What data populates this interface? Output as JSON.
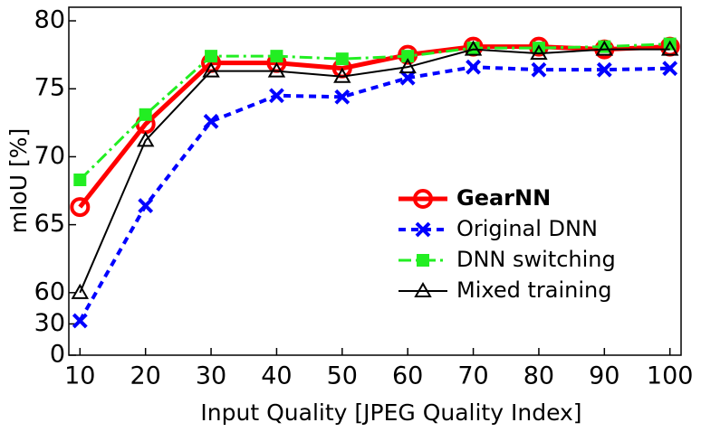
{
  "chart_data": {
    "type": "line",
    "xlabel": "Input Quality [JPEG Quality Index]",
    "ylabel": "mIoU [%]",
    "x": [
      10,
      20,
      30,
      40,
      50,
      60,
      70,
      80,
      90,
      100
    ],
    "xlim": [
      8.3,
      101.7
    ],
    "xticks": [
      10,
      20,
      30,
      40,
      50,
      60,
      70,
      80,
      90,
      100
    ],
    "ylim": [
      0,
      81
    ],
    "yticks": [
      0,
      30,
      60,
      65,
      70,
      75,
      80
    ],
    "legend": "right",
    "series": [
      {
        "name": "GearNN",
        "color": "#ff0000",
        "values": [
          66.3,
          72.4,
          76.9,
          76.9,
          76.5,
          77.5,
          78.1,
          78.1,
          77.9,
          78.1
        ]
      },
      {
        "name": "Original DNN",
        "color": "#0000ff",
        "values": [
          33,
          66.4,
          72.6,
          74.5,
          74.4,
          75.8,
          76.6,
          76.4,
          76.4,
          76.5
        ]
      },
      {
        "name": "DNN switching",
        "color": "#22ee22",
        "values": [
          68.3,
          73.1,
          77.4,
          77.4,
          77.2,
          77.4,
          78.0,
          78.0,
          78.1,
          78.3
        ]
      },
      {
        "name": "Mixed training",
        "color": "#000000",
        "values": [
          60,
          71.2,
          76.3,
          76.3,
          75.9,
          76.6,
          77.9,
          77.6,
          77.9,
          77.9
        ]
      }
    ]
  }
}
